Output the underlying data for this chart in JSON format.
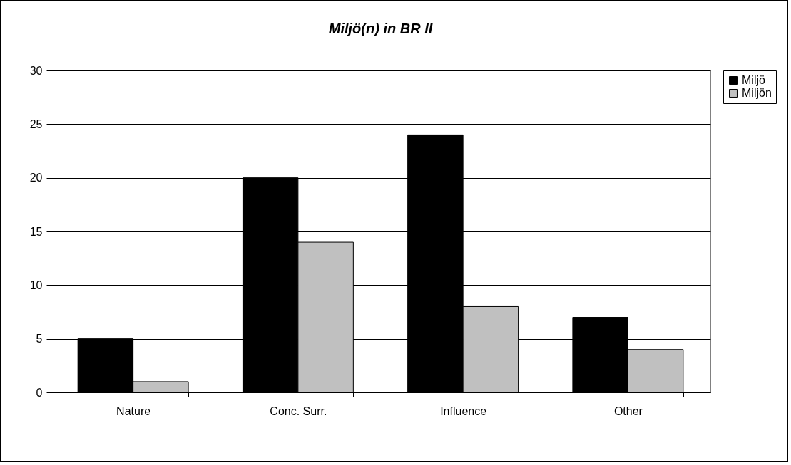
{
  "chart_data": {
    "type": "bar",
    "title": "Miljö(n) in BR II",
    "categories": [
      "Nature",
      "Conc. Surr.",
      "Influence",
      "Other"
    ],
    "series": [
      {
        "name": "Miljö",
        "color": "#000000",
        "values": [
          5,
          20,
          24,
          7
        ]
      },
      {
        "name": "Miljön",
        "color": "#c0c0c0",
        "values": [
          1,
          14,
          8,
          4
        ]
      }
    ],
    "ylim": [
      0,
      30
    ],
    "yticks": [
      0,
      5,
      10,
      15,
      20,
      25,
      30
    ],
    "grid": "y",
    "legend": "right"
  }
}
